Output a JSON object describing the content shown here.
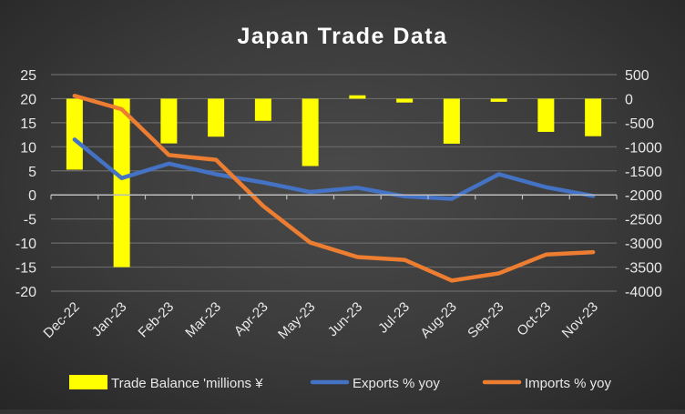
{
  "chart_data": {
    "type": "bar+line",
    "title": "Japan Trade Data",
    "categories": [
      "Dec-22",
      "Jan-23",
      "Feb-23",
      "Mar-23",
      "Apr-23",
      "May-23",
      "Jun-23",
      "Jul-23",
      "Aug-23",
      "Sep-23",
      "Oct-23",
      "Nov-23"
    ],
    "left_axis": {
      "ylim": [
        -20,
        25
      ],
      "ticks": [
        "25",
        "20",
        "15",
        "10",
        "5",
        "0",
        "-5",
        "-10",
        "-15",
        "-20"
      ],
      "tick_values": [
        25,
        20,
        15,
        10,
        5,
        0,
        -5,
        -10,
        -15,
        -20
      ]
    },
    "right_axis": {
      "ylim": [
        -4000,
        500
      ],
      "ticks": [
        "500",
        "0",
        "-500",
        "-1000",
        "-1500",
        "-2000",
        "-2500",
        "-3000",
        "-3500",
        "-4000"
      ],
      "tick_values": [
        500,
        0,
        -500,
        -1000,
        -1500,
        -2000,
        -2500,
        -3000,
        -3500,
        -4000
      ]
    },
    "series": [
      {
        "name": "Trade Balance 'millions ¥",
        "type": "bar",
        "axis": "right",
        "color": "#FFFF00",
        "values": [
          -1475,
          -3500,
          -930,
          -790,
          -460,
          -1400,
          70,
          -80,
          -935,
          -65,
          -690,
          -780
        ]
      },
      {
        "name": "Exports  % yoy",
        "type": "line",
        "axis": "left",
        "color": "#4472C4",
        "values": [
          11.5,
          3.5,
          6.5,
          4.3,
          2.6,
          0.6,
          1.5,
          -0.3,
          -0.8,
          4.3,
          1.6,
          -0.2
        ]
      },
      {
        "name": "Imports % yoy",
        "type": "line",
        "axis": "left",
        "color": "#ED7D31",
        "values": [
          20.6,
          17.8,
          8.3,
          7.3,
          -2.3,
          -9.9,
          -12.9,
          -13.5,
          -17.8,
          -16.3,
          -12.4,
          -11.9
        ]
      }
    ],
    "grid": true,
    "legend": "bottom"
  }
}
